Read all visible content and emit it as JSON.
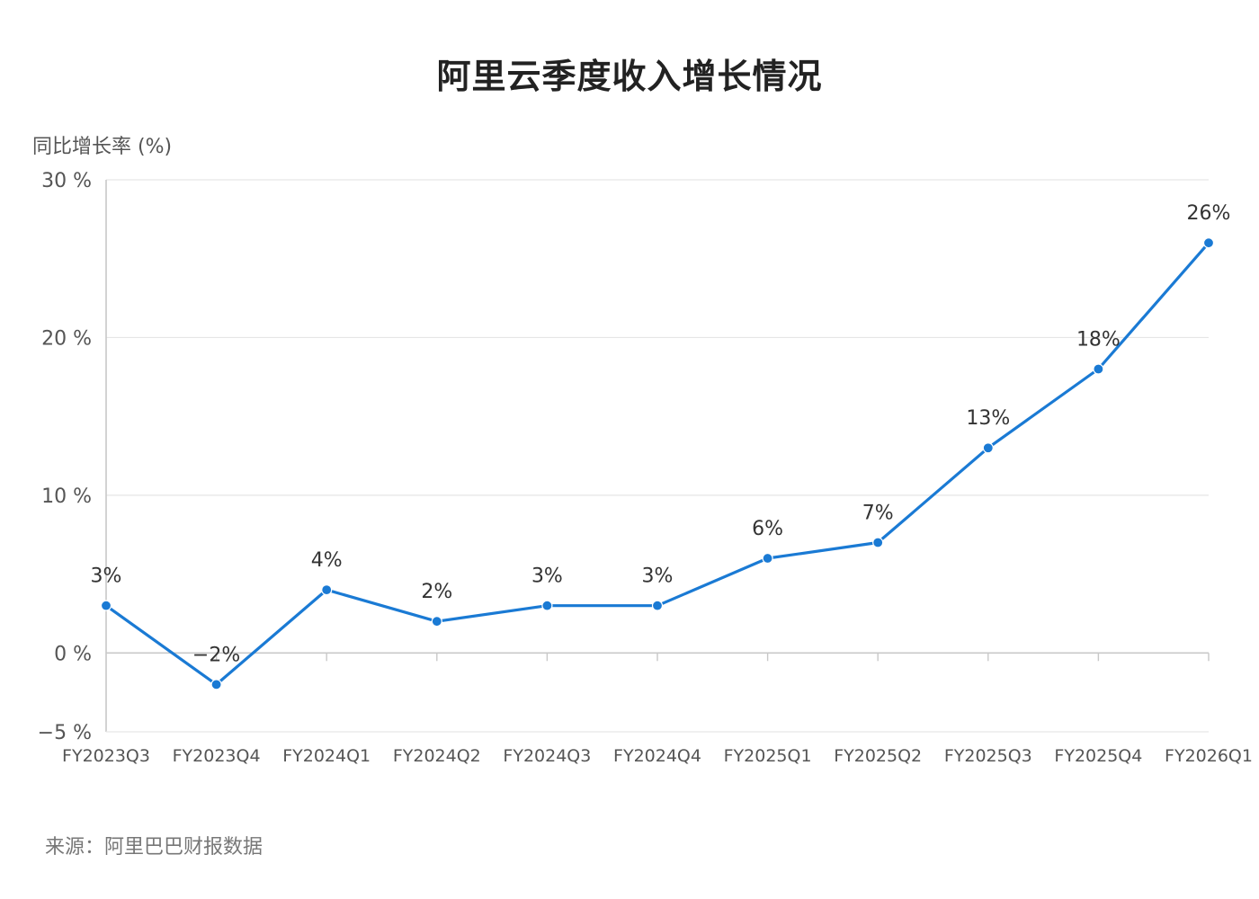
{
  "chart_data": {
    "type": "line",
    "title": "阿里云季度收入增长情况",
    "ylabel": "同比增长率 (%)",
    "xlabel": "",
    "categories": [
      "FY2023Q3",
      "FY2023Q4",
      "FY2024Q1",
      "FY2024Q2",
      "FY2024Q3",
      "FY2024Q4",
      "FY2025Q1",
      "FY2025Q2",
      "FY2025Q3",
      "FY2025Q4",
      "FY2026Q1"
    ],
    "series": [
      {
        "values": [
          3,
          -2,
          4,
          2,
          3,
          3,
          6,
          7,
          13,
          18,
          26
        ],
        "data_labels": [
          "3%",
          "−2%",
          "4%",
          "2%",
          "3%",
          "3%",
          "6%",
          "7%",
          "13%",
          "18%",
          "26%"
        ],
        "color": "#1a7ad4"
      }
    ],
    "ylim": [
      -5,
      30
    ],
    "yticks": [
      {
        "value": 30,
        "label": "30 %"
      },
      {
        "value": 20,
        "label": "20 %"
      },
      {
        "value": 10,
        "label": "10 %"
      },
      {
        "value": 0,
        "label": "0 %"
      },
      {
        "value": -5,
        "label": "−5 %"
      }
    ],
    "grid": true,
    "legend": "none"
  },
  "source_note": "来源：阿里巴巴财报数据"
}
